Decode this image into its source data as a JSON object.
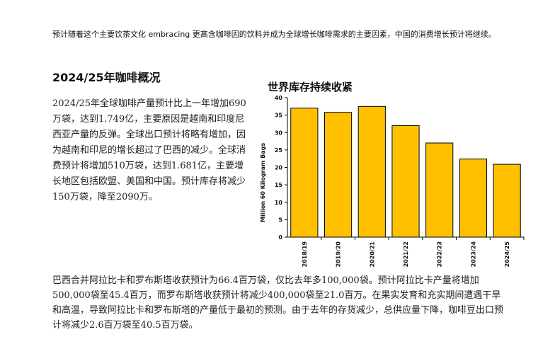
{
  "intro_text": "预计随着这个主要饮茶文化 embracing 更高含咖啡因的饮料并成为全球增长咖啡需求的主要因素，中国的消费增长预计将继续。",
  "section_title": "2024/25年咖啡概况",
  "left_paragraph": "2024/25年全球咖啡产量预计比上一年增加690万袋，达到1.749亿，主要原因是越南和印度尼西亚产量的反弹。全球出口预计将略有增加，因为越南和印尼的增长超过了巴西的减少。全球消费预计将增加510万袋，达到1.681亿，主要增长地区包括欧盟、美国和中国。预计库存将减少150万袋，降至2090万。",
  "bottom_paragraph": "巴西合并阿拉比卡和罗布斯塔收获预计为66.4百万袋，仅比去年多100,000袋。预计阿拉比卡产量将增加500,000袋至45.4百万，而罗布斯塔收获预计将减少400,000袋至21.0百万。在果实发育和充实期间遭遇干旱和高温，导致阿拉比卡和罗布斯塔的产量低于最初的预测。由于去年的存货减少，总供应量下降，咖啡豆出口预计将减少2.6百万袋至40.5百万袋。",
  "chart_data": {
    "type": "bar",
    "title": "世界库存持续收紧",
    "ylabel": "Million 60 Kilogram Bags",
    "xlabel": "",
    "categories": [
      "2018/19",
      "2019/20",
      "2020/21",
      "2021/22",
      "2022/23",
      "2023/24",
      "2024/25"
    ],
    "values": [
      37,
      35.8,
      37.5,
      32,
      27,
      22.4,
      20.9
    ],
    "ylim": [
      0,
      40
    ],
    "yticks": [
      0,
      5,
      10,
      15,
      20,
      25,
      30,
      35,
      40
    ],
    "grid": false,
    "bar_color": "#FFC000"
  }
}
